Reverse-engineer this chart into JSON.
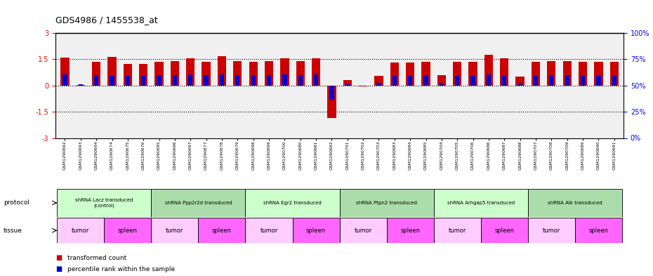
{
  "title": "GDS4986 / 1455538_at",
  "samples": [
    "GSM1290692",
    "GSM1290693",
    "GSM1290694",
    "GSM1290674",
    "GSM1290675",
    "GSM1290676",
    "GSM1290695",
    "GSM1290696",
    "GSM1290697",
    "GSM1290677",
    "GSM1290678",
    "GSM1290679",
    "GSM1290698",
    "GSM1290699",
    "GSM1290700",
    "GSM1290680",
    "GSM1290681",
    "GSM1290682",
    "GSM1290701",
    "GSM1290702",
    "GSM1290703",
    "GSM1290683",
    "GSM1290684",
    "GSM1290685",
    "GSM1290704",
    "GSM1290705",
    "GSM1290706",
    "GSM1290686",
    "GSM1290687",
    "GSM1290688",
    "GSM1290707",
    "GSM1290708",
    "GSM1290709",
    "GSM1290689",
    "GSM1290690",
    "GSM1290691"
  ],
  "red_values": [
    1.6,
    0.05,
    1.35,
    1.65,
    1.25,
    1.25,
    1.35,
    1.4,
    1.55,
    1.35,
    1.7,
    1.4,
    1.35,
    1.4,
    1.55,
    1.4,
    1.55,
    -1.85,
    0.3,
    -0.05,
    0.55,
    1.3,
    1.3,
    1.35,
    0.6,
    1.35,
    1.35,
    1.75,
    1.55,
    0.5,
    1.35,
    1.4,
    1.4,
    1.35,
    1.35,
    1.35
  ],
  "blue_values": [
    0.65,
    0.08,
    0.6,
    0.55,
    0.55,
    0.55,
    0.6,
    0.6,
    0.65,
    0.6,
    0.65,
    0.6,
    0.6,
    0.6,
    0.65,
    0.6,
    0.65,
    -0.8,
    0.1,
    -0.02,
    0.15,
    0.55,
    0.55,
    0.55,
    0.15,
    0.55,
    0.55,
    0.65,
    0.6,
    0.15,
    0.55,
    0.6,
    0.6,
    0.55,
    0.55,
    0.55
  ],
  "protocols": [
    {
      "label": "shRNA Lacz transduced\n(control)",
      "start": 0,
      "end": 6,
      "color": "#ccffcc"
    },
    {
      "label": "shRNA Ppp2r2d transduced",
      "start": 6,
      "end": 12,
      "color": "#aaddaa"
    },
    {
      "label": "shRNA Egr2 transduced",
      "start": 12,
      "end": 18,
      "color": "#ccffcc"
    },
    {
      "label": "shRNA Ptpn2 transduced",
      "start": 18,
      "end": 24,
      "color": "#aaddaa"
    },
    {
      "label": "shRNA Arhgap5 transduced",
      "start": 24,
      "end": 30,
      "color": "#ccffcc"
    },
    {
      "label": "shRNA Alk transduced",
      "start": 30,
      "end": 36,
      "color": "#aaddaa"
    }
  ],
  "tissues": [
    {
      "label": "tumor",
      "start": 0,
      "end": 3,
      "color": "#ffccff"
    },
    {
      "label": "spleen",
      "start": 3,
      "end": 6,
      "color": "#ff66ff"
    },
    {
      "label": "tumor",
      "start": 6,
      "end": 9,
      "color": "#ffccff"
    },
    {
      "label": "spleen",
      "start": 9,
      "end": 12,
      "color": "#ff66ff"
    },
    {
      "label": "tumor",
      "start": 12,
      "end": 15,
      "color": "#ffccff"
    },
    {
      "label": "spleen",
      "start": 15,
      "end": 18,
      "color": "#ff66ff"
    },
    {
      "label": "tumor",
      "start": 18,
      "end": 21,
      "color": "#ffccff"
    },
    {
      "label": "spleen",
      "start": 21,
      "end": 24,
      "color": "#ff66ff"
    },
    {
      "label": "tumor",
      "start": 24,
      "end": 27,
      "color": "#ffccff"
    },
    {
      "label": "spleen",
      "start": 27,
      "end": 30,
      "color": "#ff66ff"
    },
    {
      "label": "tumor",
      "start": 30,
      "end": 33,
      "color": "#ffccff"
    },
    {
      "label": "spleen",
      "start": 33,
      "end": 36,
      "color": "#ff66ff"
    }
  ],
  "ylim": [
    -3,
    3
  ],
  "yticks_left": [
    -3,
    -1.5,
    0,
    1.5,
    3
  ],
  "yticks_right": [
    0,
    25,
    50,
    75,
    100
  ],
  "red_color": "#cc0000",
  "blue_color": "#0000cc",
  "dotted_lines": [
    1.5,
    0.0,
    -1.5
  ],
  "bg_color": "#f0f0f0"
}
